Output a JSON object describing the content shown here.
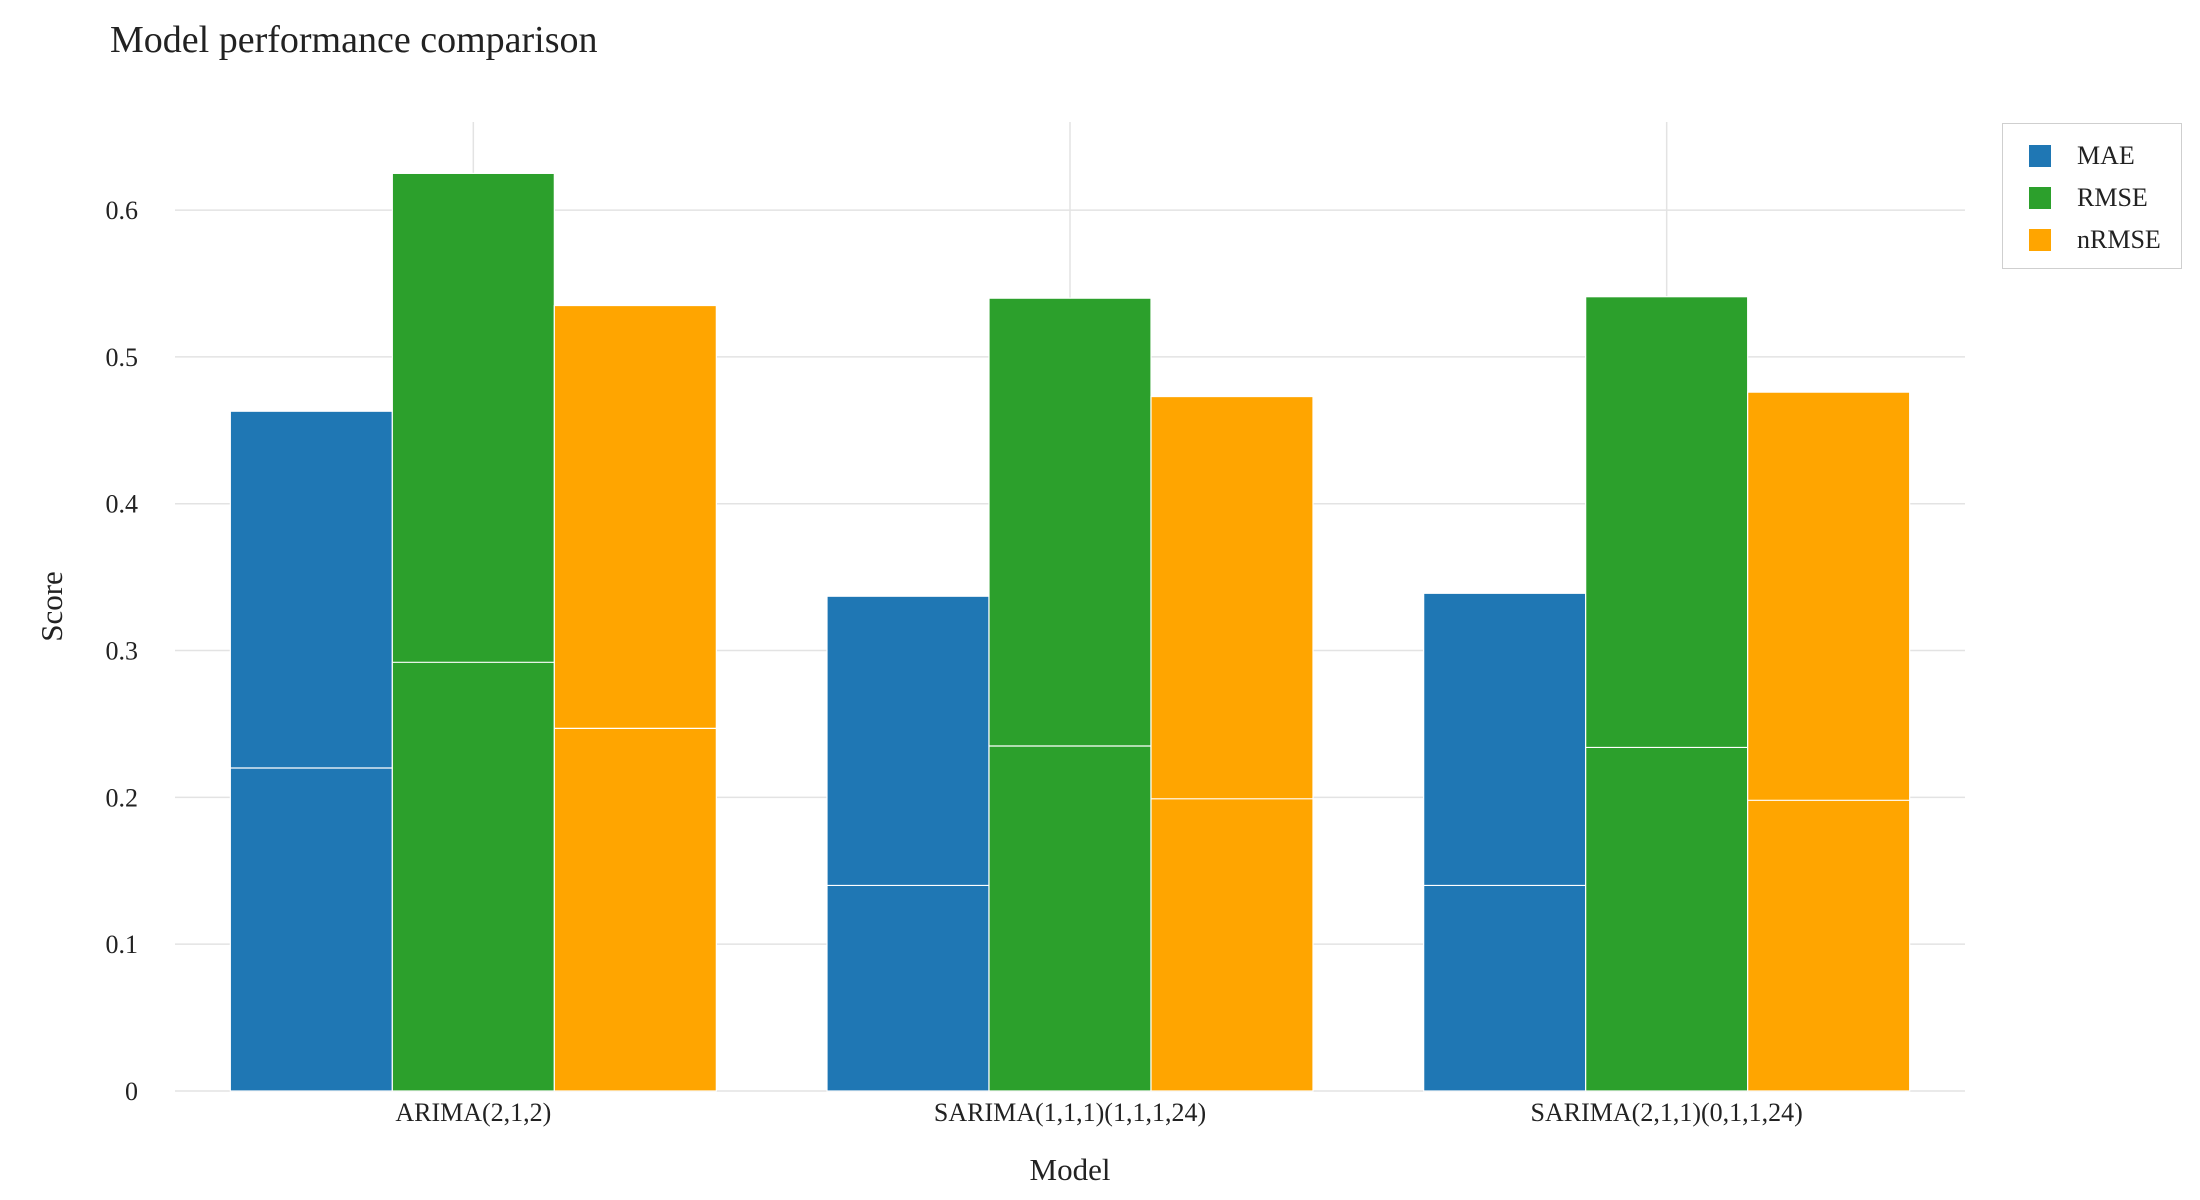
{
  "chart_data": {
    "type": "bar",
    "title": "Model performance comparison",
    "xlabel": "Model",
    "ylabel": "Score",
    "categories": [
      "ARIMA(2,1,2)",
      "SARIMA(1,1,1)(1,1,1,24)",
      "SARIMA(2,1,1)(0,1,1,24)"
    ],
    "ylim": [
      0,
      0.66
    ],
    "yticks": [
      0,
      0.1,
      0.2,
      0.3,
      0.4,
      0.5,
      0.6
    ],
    "ytick_labels": [
      "0",
      "0.1",
      "0.2",
      "0.3",
      "0.4",
      "0.5",
      "0.6"
    ],
    "grid": true,
    "legend_position": "top-right",
    "series": [
      {
        "name": "MAE",
        "color": "#1f77b4",
        "values": [
          0.463,
          0.337,
          0.339
        ],
        "inner_segment": [
          0.22,
          0.14,
          0.14
        ]
      },
      {
        "name": "RMSE",
        "color": "#2ca02c",
        "values": [
          0.625,
          0.54,
          0.541
        ],
        "inner_segment": [
          0.292,
          0.235,
          0.234
        ]
      },
      {
        "name": "nRMSE",
        "color": "#ffa500",
        "values": [
          0.535,
          0.473,
          0.476
        ],
        "inner_segment": [
          0.247,
          0.199,
          0.198
        ]
      }
    ]
  }
}
